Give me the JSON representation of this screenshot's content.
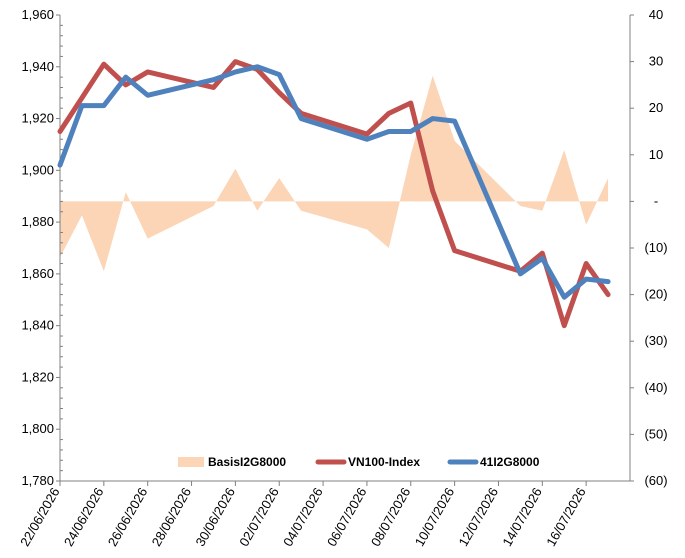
{
  "chart_data": {
    "type": "line",
    "x": [
      "22/06/2026",
      "23/06/2026",
      "24/06/2026",
      "25/06/2026",
      "26/06/2026",
      "29/06/2026",
      "30/06/2026",
      "01/07/2026",
      "02/07/2026",
      "03/07/2026",
      "06/07/2026",
      "07/07/2026",
      "08/07/2026",
      "09/07/2026",
      "10/07/2026",
      "13/07/2026",
      "14/07/2026",
      "15/07/2026",
      "16/07/2026",
      "17/07/2026"
    ],
    "x_tick_labels": [
      "22/06/2026",
      "24/06/2026",
      "26/06/2026",
      "28/06/2026",
      "30/06/2026",
      "02/07/2026",
      "04/07/2026",
      "06/07/2026",
      "08/07/2026",
      "10/07/2026",
      "12/07/2026",
      "14/07/2026",
      "16/07/2026"
    ],
    "x_tick_dates": [
      "22/06/2026",
      "24/06/2026",
      "26/06/2026",
      "28/06/2026",
      "30/06/2026",
      "02/07/2026",
      "04/07/2026",
      "06/07/2026",
      "08/07/2026",
      "10/07/2026",
      "12/07/2026",
      "14/07/2026",
      "16/07/2026"
    ],
    "x_range": [
      "22/06/2026",
      "18/07/2026"
    ],
    "y_left": {
      "min": 1780,
      "max": 1960,
      "step": 20,
      "tick_labels": [
        "1,780",
        "1,800",
        "1,820",
        "1,840",
        "1,860",
        "1,880",
        "1,900",
        "1,920",
        "1,940",
        "1,960"
      ]
    },
    "y_right": {
      "min": -60,
      "max": 40,
      "step": 10,
      "tick_labels": [
        "(60)",
        "(50)",
        "(40)",
        "(30)",
        "(20)",
        "(10)",
        "-",
        "10",
        "20",
        "30",
        "40"
      ]
    },
    "series": [
      {
        "name": "BasisI2G8000",
        "type": "area",
        "axis": "right",
        "color": "#fbd5b5",
        "values": [
          -12,
          -3,
          -15,
          2,
          -8,
          -1,
          7,
          -2,
          5,
          -2,
          -6,
          -10,
          10,
          27,
          13,
          -1,
          -2,
          11,
          -5,
          5
        ]
      },
      {
        "name": "VN100-Index",
        "type": "line",
        "axis": "left",
        "color": "#c0504d",
        "values": [
          1915,
          1928,
          1941,
          1933,
          1938,
          1932,
          1942,
          1939,
          1930,
          1922,
          1914,
          1922,
          1926,
          1892,
          1869,
          1861,
          1868,
          1840,
          1864,
          1852
        ]
      },
      {
        "name": "41I2G8000",
        "type": "line",
        "axis": "left",
        "color": "#4f81bd",
        "values": [
          1902,
          1925,
          1925,
          1936,
          1929,
          1935,
          1938,
          1940,
          1937,
          1920,
          1912,
          1915,
          1915,
          1920,
          1919,
          1860,
          1866,
          1851,
          1858,
          1857
        ]
      }
    ],
    "grid": false,
    "legend_position": "bottom-center",
    "title": "",
    "xlabel": "",
    "ylabel": ""
  }
}
